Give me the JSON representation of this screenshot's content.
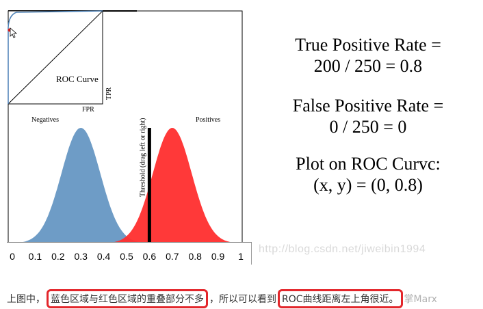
{
  "figure": {
    "roc": {
      "title": "ROC Curve",
      "x_label": "FPR",
      "y_label": "TPR",
      "current_point": {
        "fpr": 0.0,
        "tpr": 0.8
      }
    },
    "distributions": {
      "negatives_label": "Negatives",
      "positives_label": "Positives",
      "negative_mean": 0.3,
      "positive_mean": 0.7,
      "negative_color": "#6e9cc6",
      "positive_color": "#ff2e2e",
      "threshold_value": 0.6,
      "threshold_label": "Threshold (drag left or right)"
    },
    "axis_ticks": [
      "0",
      "0.1",
      "0.2",
      "0.3",
      "0.4",
      "0.5",
      "0.6",
      "0.7",
      "0.8",
      "0.9",
      "1"
    ]
  },
  "formulas": {
    "tpr_line1": "True Positive Rate =",
    "tpr_line2": "200 / 250 = 0.8",
    "fpr_line1": "False Positive Rate =",
    "fpr_line2": "0 / 250 = 0",
    "plot_line1": "Plot on ROC Curvc:",
    "plot_line2": "(x, y) = (0, 0.8)"
  },
  "caption": {
    "prefix": "上图中，",
    "highlight1": "蓝色区域与红色区域的重叠部分不多",
    "middle": "，所以可以看到",
    "highlight2": "ROC曲线距离左上角很近。",
    "suffix": "掌Marx"
  },
  "watermark": "http://blog.csdn.net/jiweibin1994",
  "colors": {
    "highlight_box": "#e3262b"
  }
}
